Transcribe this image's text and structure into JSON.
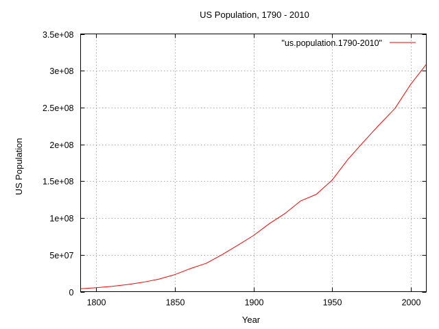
{
  "chart_data": {
    "type": "line",
    "title": "US Population, 1790 - 2010",
    "xlabel": "Year",
    "ylabel": "US Population",
    "xlim": [
      1790,
      2010
    ],
    "ylim": [
      0,
      350000000
    ],
    "x_ticks": [
      1800,
      1850,
      1900,
      1950,
      2000
    ],
    "y_ticks": [
      0,
      50000000,
      100000000,
      150000000,
      200000000,
      250000000,
      300000000,
      350000000
    ],
    "y_tick_labels": [
      "0",
      "5e+07",
      "1e+08",
      "1.5e+08",
      "2e+08",
      "2.5e+08",
      "3e+08",
      "3.5e+08"
    ],
    "grid": true,
    "legend_position": "top-right",
    "series": [
      {
        "name": "\"us.population.1790-2010\"",
        "color": "#ff0000",
        "x": [
          1790,
          1800,
          1810,
          1820,
          1830,
          1840,
          1850,
          1860,
          1870,
          1880,
          1890,
          1900,
          1910,
          1920,
          1930,
          1940,
          1950,
          1960,
          1970,
          1980,
          1990,
          2000,
          2010
        ],
        "y": [
          3929214,
          5308483,
          7239881,
          9638453,
          12866020,
          17069453,
          23191876,
          31443321,
          38558371,
          50189209,
          62979766,
          76212168,
          92228496,
          106021537,
          123202624,
          132164569,
          151325798,
          179323175,
          203302031,
          226542199,
          248709873,
          281421906,
          308745538
        ]
      }
    ]
  }
}
